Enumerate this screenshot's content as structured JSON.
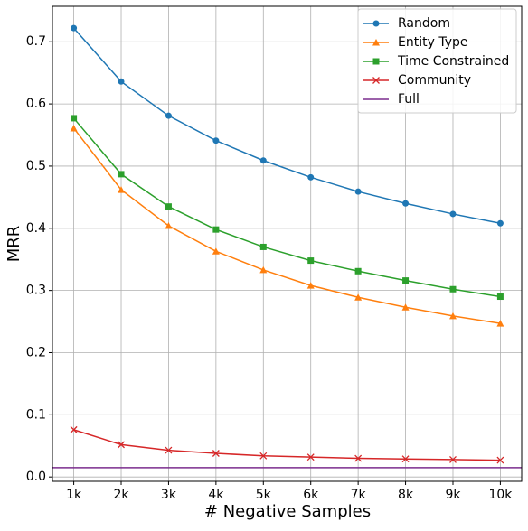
{
  "chart_data": {
    "type": "line",
    "xlabel": "# Negative Samples",
    "ylabel": "MRR",
    "categories": [
      "1k",
      "2k",
      "3k",
      "4k",
      "5k",
      "6k",
      "7k",
      "8k",
      "9k",
      "10k"
    ],
    "series": [
      {
        "name": "Random",
        "color": "#1f77b4",
        "marker": "circle",
        "values": [
          0.722,
          0.636,
          0.581,
          0.541,
          0.509,
          0.482,
          0.459,
          0.44,
          0.423,
          0.408
        ]
      },
      {
        "name": "Entity Type",
        "color": "#ff7f0e",
        "marker": "triangle",
        "values": [
          0.561,
          0.462,
          0.404,
          0.363,
          0.333,
          0.308,
          0.289,
          0.273,
          0.259,
          0.247
        ]
      },
      {
        "name": "Time Constrained",
        "color": "#2ca02c",
        "marker": "square",
        "values": [
          0.577,
          0.487,
          0.435,
          0.398,
          0.37,
          0.348,
          0.331,
          0.316,
          0.302,
          0.29
        ]
      },
      {
        "name": "Community",
        "color": "#d62728",
        "marker": "x",
        "values": [
          0.076,
          0.052,
          0.043,
          0.038,
          0.034,
          0.032,
          0.03,
          0.029,
          0.028,
          0.027
        ]
      }
    ],
    "hline": {
      "name": "Full",
      "color": "#7b2d8e",
      "value": 0.015
    },
    "ylim": [
      -0.007,
      0.757
    ],
    "yticks": [
      {
        "value": 0,
        "label": "0.0"
      },
      0.1,
      0.2,
      0.3,
      0.4,
      0.5,
      0.6,
      0.7
    ],
    "grid": true,
    "legend": "upper right"
  }
}
